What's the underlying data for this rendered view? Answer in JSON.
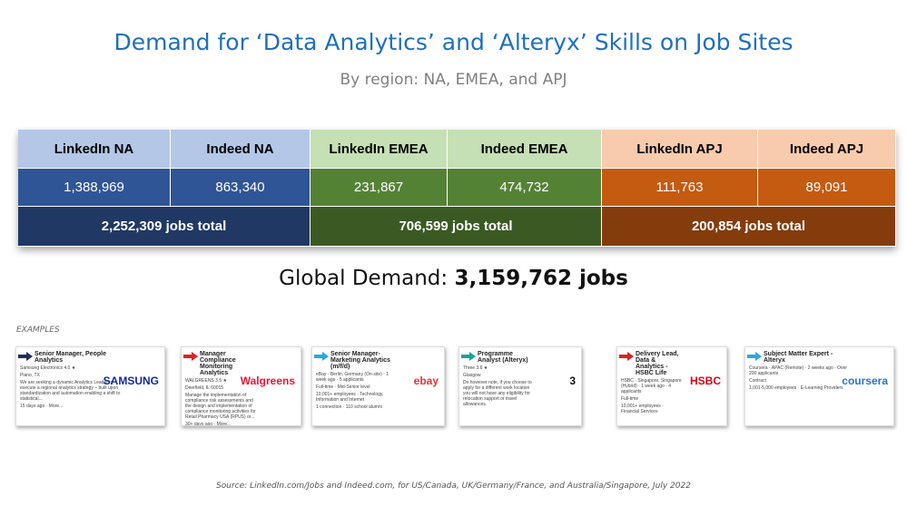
{
  "header": {
    "title": "Demand for ‘Data Analytics’ and ‘Alteryx’ Skills on Job Sites",
    "subtitle": "By region: NA, EMEA, and APJ"
  },
  "table": {
    "headers": [
      "LinkedIn NA",
      "Indeed NA",
      "LinkedIn EMEA",
      "Indeed EMEA",
      "LinkedIn APJ",
      "Indeed APJ"
    ],
    "values": [
      "1,388,969",
      "863,340",
      "231,867",
      "474,732",
      "111,763",
      "89,091"
    ],
    "totals": [
      "2,252,309 jobs total",
      "706,599 jobs total",
      "200,854 jobs total"
    ]
  },
  "global": {
    "label": "Global Demand:",
    "value": "3,159,762 jobs"
  },
  "examples": {
    "label": "EXAMPLES",
    "cards": [
      {
        "title": "Senior Manager, People Analytics",
        "lines": [
          "Samsung Electronics 4.0 ★",
          "Plano, TX",
          "We are seeking a dynamic Analytics Leader to execute a regional analytics strategy – built upon standardization and automation enabling a shift to statistical...",
          "15 days ago · More..."
        ],
        "logo": "SAMSUNG"
      },
      {
        "title": "Manager Compliance Monitoring Analytics",
        "lines": [
          "WALGREENS 3.5 ★",
          "Deerfield, IL 60015",
          "Manage the implementation of compliance risk assessments and the design and implementation of compliance monitoring activities for Retail Pharmacy USA (RPUS) or...",
          "30+ days ago · More..."
        ],
        "logo": "Walgreens"
      },
      {
        "title": "Senior Manager- Marketing Analytics (m/f/d)",
        "lines": [
          "eBay · Berlin, Germany (On-site) · 1 week ago · 5 applicants",
          "Full-time · Mid-Senior level",
          "10,001+ employees · Technology, Information and Internet",
          "1 connection · 110 school alumni"
        ],
        "logo": "ebay"
      },
      {
        "title": "Programme Analyst (Alteryx)",
        "lines": [
          "Three 3.6 ★",
          "Glasgow",
          "Do however note, if you choose to apply for a different work location you will not have any eligibility for relocation support or travel allowances."
        ],
        "logo": "3"
      },
      {
        "title": "Delivery Lead, Data & Analytics - HSBC Life",
        "lines": [
          "HSBC · Singapore, Singapore (Hybrid) · 1 week ago · 4 applicants",
          "Full-time",
          "10,001+ employees · Financial Services"
        ],
        "logo": "HSBC"
      },
      {
        "title": "Subject Matter Expert - Alteryx",
        "lines": [
          "Coursera · APAC (Remote) · 2 weeks ago · Over 200 applicants",
          "Contract",
          "1,001-5,000 employees · E-Learning Providers"
        ],
        "logo": "coursera"
      }
    ]
  },
  "footer": {
    "source": "Source: LinkedIn.com/Jobs and Indeed.com, for US/Canada, UK/Germany/France, and Australia/Singapore, July 2022"
  }
}
